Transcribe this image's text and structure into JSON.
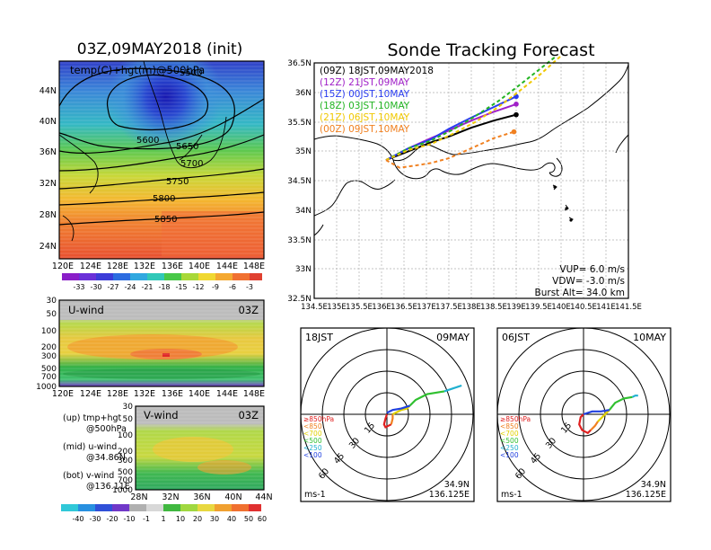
{
  "left_title": "03Z,09MAY2018 (init)",
  "right_title": "Sonde Tracking Forecast",
  "map_panel": {
    "label": "temp(C)+hgt(m)@500hPa",
    "lon_ticks": [
      "120E",
      "124E",
      "128E",
      "132E",
      "136E",
      "140E",
      "144E",
      "148E"
    ],
    "lat_ticks": [
      "44N",
      "40N",
      "36N",
      "32N",
      "28N",
      "24N"
    ],
    "contour_labels": [
      "5500",
      "5600",
      "5650",
      "5700",
      "5750",
      "5800",
      "5850"
    ],
    "colorbar_labels": [
      "-33",
      "-30",
      "-27",
      "-24",
      "-21",
      "-18",
      "-15",
      "-12",
      "-9",
      "-6",
      "-3"
    ]
  },
  "uwind_panel": {
    "label": "U-wind",
    "time": "03Z",
    "p_ticks": [
      "30",
      "50",
      "100",
      "200",
      "300",
      "500",
      "700",
      "1000"
    ],
    "lon_ticks": [
      "120E",
      "124E",
      "128E",
      "132E",
      "136E",
      "140E",
      "144E",
      "148E"
    ]
  },
  "vwind_panel": {
    "label": "V-wind",
    "time": "03Z",
    "p_ticks": [
      "30",
      "50",
      "100",
      "200",
      "300",
      "500",
      "700",
      "1000"
    ],
    "lat_ticks": [
      "28N",
      "32N",
      "36N",
      "40N",
      "44N"
    ]
  },
  "legend_text": {
    "up1": "(up) tmp+hgt",
    "up2": "@500hPa",
    "mid1": "(mid) u-wind",
    "mid2": "@34.86N",
    "bot1": "(bot) v-wind",
    "bot2": "@136.11E"
  },
  "wind_colorbar_labels": [
    "-40",
    "-30",
    "-20",
    "-10",
    "-1",
    "1",
    "10",
    "20",
    "30",
    "40",
    "50",
    "60"
  ],
  "track_panel": {
    "lon_ticks": [
      "134.5E",
      "135E",
      "135.5E",
      "136E",
      "136.5E",
      "137E",
      "137.5E",
      "138E",
      "138.5E",
      "139E",
      "139.5E",
      "140E",
      "140.5E",
      "141E",
      "141.5E"
    ],
    "lat_ticks": [
      "36.5N",
      "36N",
      "35.5N",
      "35N",
      "34.5N",
      "34N",
      "33.5N",
      "33N",
      "32.5N"
    ],
    "legend": [
      {
        "text": "(09Z)  18JST,09MAY2018",
        "color": "#000000"
      },
      {
        "text": "(12Z)  21JST,09MAY",
        "color": "#a020c8"
      },
      {
        "text": "(15Z)  00JST,10MAY",
        "color": "#2a3cf0"
      },
      {
        "text": "(18Z)  03JST,10MAY",
        "color": "#22b422"
      },
      {
        "text": "(21Z)  06JST,10MAY",
        "color": "#f0c800"
      },
      {
        "text": "(00Z)  09JST,10MAY",
        "color": "#f08020"
      }
    ],
    "params": [
      "VUP=  6.0 m/s",
      "VDW= -3.0 m/s",
      "Burst Alt= 34.0 km"
    ]
  },
  "hodo_left": {
    "top_left": "18JST",
    "top_right": "09MAY",
    "ring_labels": [
      "15",
      "30",
      "45",
      "60"
    ],
    "levels": [
      {
        "text": "≥850hPa",
        "color": "#e02020"
      },
      {
        "text": "<850",
        "color": "#f08020"
      },
      {
        "text": "<700",
        "color": "#e0d000"
      },
      {
        "text": "<500",
        "color": "#30c030"
      },
      {
        "text": "<250",
        "color": "#20b0d0"
      },
      {
        "text": "<100",
        "color": "#2040e0"
      }
    ],
    "loc1": "34.9N",
    "loc2": "136.125E",
    "unit": "ms-1"
  },
  "hodo_right": {
    "top_left": "06JST",
    "top_right": "10MAY",
    "ring_labels": [
      "15",
      "30",
      "45",
      "60"
    ],
    "levels": [
      {
        "text": "≥850hPa",
        "color": "#e02020"
      },
      {
        "text": "<850",
        "color": "#f08020"
      },
      {
        "text": "<700",
        "color": "#e0d000"
      },
      {
        "text": "<500",
        "color": "#30c030"
      },
      {
        "text": "<250",
        "color": "#20b0d0"
      },
      {
        "text": "<100",
        "color": "#2040e0"
      }
    ],
    "loc1": "34.9N",
    "loc2": "136.125E",
    "unit": "ms-1"
  },
  "chart_data": [
    {
      "type": "heatmap",
      "title": "temp(C)+hgt(m)@500hPa",
      "xlabel": "",
      "ylabel": "",
      "xlim": [
        120,
        150
      ],
      "ylim": [
        22,
        48
      ],
      "colorbar": [
        -33,
        -30,
        -27,
        -24,
        -21,
        -18,
        -15,
        -12,
        -9,
        -6,
        -3
      ],
      "contours": [
        5500,
        5600,
        5650,
        5700,
        5750,
        5800,
        5850
      ]
    },
    {
      "type": "heatmap",
      "title": "U-wind",
      "xlim": [
        120,
        150
      ],
      "ylim": [
        1000,
        30
      ],
      "colorbar": [
        -40,
        -30,
        -20,
        -10,
        -1,
        1,
        10,
        20,
        30,
        40,
        50,
        60
      ]
    },
    {
      "type": "heatmap",
      "title": "V-wind",
      "xlim": [
        28,
        44
      ],
      "ylim": [
        1000,
        30
      ],
      "colorbar": [
        -40,
        -30,
        -20,
        -10,
        -1,
        1,
        10,
        20,
        30,
        40,
        50,
        60
      ]
    },
    {
      "type": "line",
      "title": "Sonde Tracking Forecast",
      "xlim": [
        134.5,
        141.5
      ],
      "ylim": [
        32.5,
        36.5
      ],
      "series": [
        {
          "name": "(09Z)  18JST,09MAY2018",
          "color": "#000000",
          "x": [
            136.1,
            136.6,
            137.1,
            137.5,
            138.0,
            138.5,
            139.0
          ],
          "y": [
            34.85,
            35.0,
            35.15,
            35.25,
            35.4,
            35.52,
            35.62
          ]
        },
        {
          "name": "(12Z)  21JST,09MAY",
          "color": "#a020c8",
          "x": [
            136.1,
            136.6,
            137.1,
            137.5,
            138.0,
            138.5,
            139.0
          ],
          "y": [
            34.85,
            35.05,
            35.22,
            35.35,
            35.52,
            35.67,
            35.8
          ]
        },
        {
          "name": "(15Z)  00JST,10MAY",
          "color": "#2a3cf0",
          "x": [
            136.1,
            136.6,
            137.1,
            137.5,
            138.0,
            138.5,
            139.0
          ],
          "y": [
            34.85,
            35.05,
            35.2,
            35.38,
            35.57,
            35.75,
            35.93
          ]
        },
        {
          "name": "(18Z)  03JST,10MAY",
          "color": "#22b422",
          "x": [
            136.1,
            136.6,
            137.1,
            137.6,
            138.1,
            138.6,
            139.0,
            139.5,
            139.9
          ],
          "y": [
            34.85,
            35.05,
            35.18,
            35.37,
            35.6,
            35.85,
            36.08,
            36.38,
            36.62
          ]
        },
        {
          "name": "(21Z)  06JST,10MAY",
          "color": "#f0c800",
          "x": [
            136.1,
            136.6,
            137.1,
            137.6,
            138.1,
            138.6,
            139.0,
            139.5,
            140.0
          ],
          "y": [
            34.85,
            35.02,
            35.12,
            35.3,
            35.5,
            35.75,
            35.98,
            36.28,
            36.62
          ]
        },
        {
          "name": "(00Z)  09JST,10MAY",
          "color": "#f08020",
          "x": [
            136.1,
            136.4,
            136.7,
            137.1,
            137.5,
            138.0,
            138.5,
            138.95
          ],
          "y": [
            34.85,
            34.72,
            34.75,
            34.8,
            34.88,
            35.05,
            35.22,
            35.33
          ]
        }
      ],
      "annotations": [
        "VUP=  6.0 m/s",
        "VDW= -3.0 m/s",
        "Burst Alt= 34.0 km"
      ]
    },
    {
      "type": "line",
      "title": "18JST 09MAY",
      "rings": [
        15,
        30,
        45,
        60
      ],
      "series": [
        {
          "name": "≥850hPa",
          "color": "#e02020",
          "u": [
            0,
            -1,
            -2,
            -1,
            1,
            3
          ],
          "v": [
            0,
            -3,
            -7,
            -9,
            -8,
            -7
          ]
        },
        {
          "name": "<850",
          "color": "#f08020",
          "u": [
            3,
            4,
            4
          ],
          "v": [
            -7,
            -3,
            0
          ]
        },
        {
          "name": "<700",
          "color": "#e0d000",
          "u": [
            4,
            10,
            14,
            16
          ],
          "v": [
            0,
            3,
            4,
            6
          ]
        },
        {
          "name": "<500",
          "color": "#30c030",
          "u": [
            16,
            20,
            28,
            40
          ],
          "v": [
            6,
            10,
            14,
            16
          ]
        },
        {
          "name": "<250",
          "color": "#20b0d0",
          "u": [
            40,
            46,
            52
          ],
          "v": [
            16,
            18,
            20
          ]
        },
        {
          "name": "<100",
          "color": "#2040e0",
          "u": [
            16,
            10,
            4,
            0
          ],
          "v": [
            6,
            4,
            3,
            1
          ]
        }
      ]
    },
    {
      "type": "line",
      "title": "06JST 10MAY",
      "rings": [
        15,
        30,
        45,
        60
      ],
      "series": [
        {
          "name": "≥850hPa",
          "color": "#e02020",
          "u": [
            0,
            -2,
            -3,
            -1,
            3,
            5
          ],
          "v": [
            0,
            -2,
            -7,
            -11,
            -13,
            -11
          ]
        },
        {
          "name": "<850",
          "color": "#f08020",
          "u": [
            5,
            8,
            10
          ],
          "v": [
            -11,
            -8,
            -5
          ]
        },
        {
          "name": "<700",
          "color": "#e0d000",
          "u": [
            10,
            14,
            18
          ],
          "v": [
            -5,
            -1,
            3
          ]
        },
        {
          "name": "<500",
          "color": "#30c030",
          "u": [
            18,
            22,
            28,
            34
          ],
          "v": [
            3,
            8,
            11,
            12
          ]
        },
        {
          "name": "<250",
          "color": "#20b0d0",
          "u": [
            34,
            36,
            38
          ],
          "v": [
            12,
            13,
            13
          ]
        },
        {
          "name": "<100",
          "color": "#2040e0",
          "u": [
            18,
            12,
            6,
            0
          ],
          "v": [
            3,
            2,
            2,
            0
          ]
        }
      ]
    }
  ]
}
